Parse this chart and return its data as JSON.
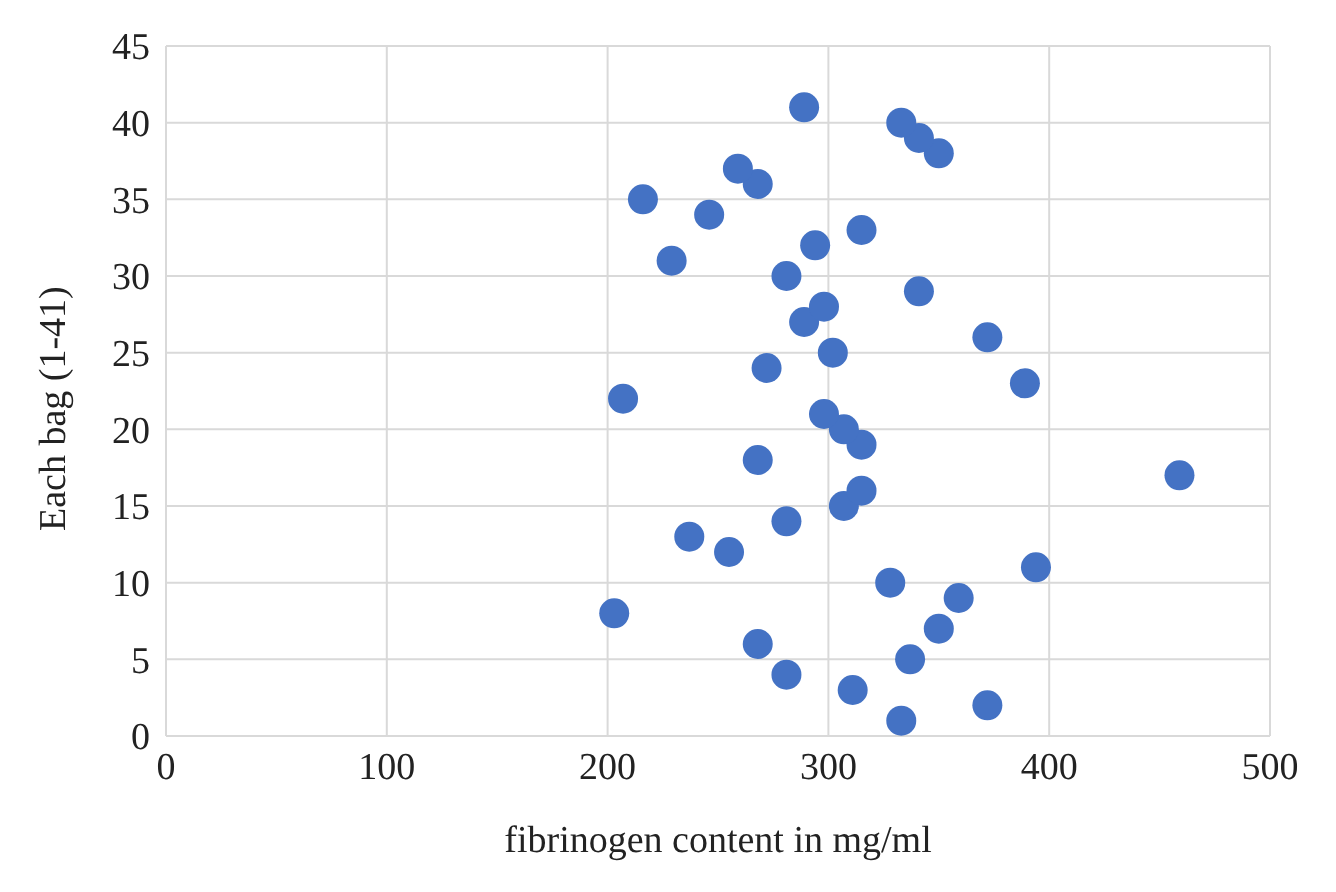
{
  "chart_data": {
    "type": "scatter",
    "xlabel": "fibrinogen content in mg/ml",
    "ylabel": "Each bag (1-41)",
    "x": [
      333,
      372,
      311,
      281,
      337,
      268,
      350,
      203,
      359,
      328,
      394,
      255,
      237,
      281,
      307,
      315,
      459,
      268,
      315,
      307,
      298,
      207,
      389,
      272,
      302,
      372,
      289,
      298,
      341,
      281,
      229,
      294,
      315,
      246,
      216,
      268,
      259,
      350,
      341,
      333,
      289
    ],
    "values": [
      1,
      2,
      3,
      4,
      5,
      6,
      7,
      8,
      9,
      10,
      11,
      12,
      13,
      14,
      15,
      16,
      17,
      18,
      19,
      20,
      21,
      22,
      23,
      24,
      25,
      26,
      27,
      28,
      29,
      30,
      31,
      32,
      33,
      34,
      35,
      36,
      37,
      38,
      39,
      40,
      41
    ],
    "color": "#4472c4",
    "marker": "circle",
    "xlim": [
      0,
      500
    ],
    "xticks": [
      0,
      100,
      200,
      300,
      400,
      500
    ],
    "ylim": [
      0,
      45
    ],
    "yticks": [
      0,
      5,
      10,
      15,
      20,
      25,
      30,
      35,
      40,
      45
    ],
    "grid": true,
    "legend": false
  }
}
